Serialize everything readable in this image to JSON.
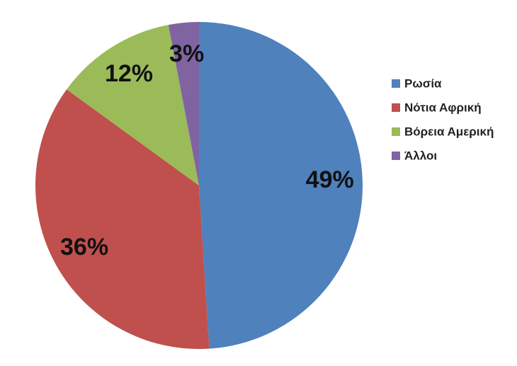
{
  "chart_data": {
    "type": "pie",
    "categories": [
      "Ρωσία",
      "Νότια Αφρική",
      "Βόρεια Αμερική",
      "Άλλοι"
    ],
    "values": [
      49,
      36,
      12,
      3
    ],
    "value_labels": [
      "49%",
      "36%",
      "12%",
      "3%"
    ],
    "colors": [
      "#4f81bd",
      "#c0504d",
      "#9bbb59",
      "#8064a2"
    ],
    "legend": "right"
  }
}
